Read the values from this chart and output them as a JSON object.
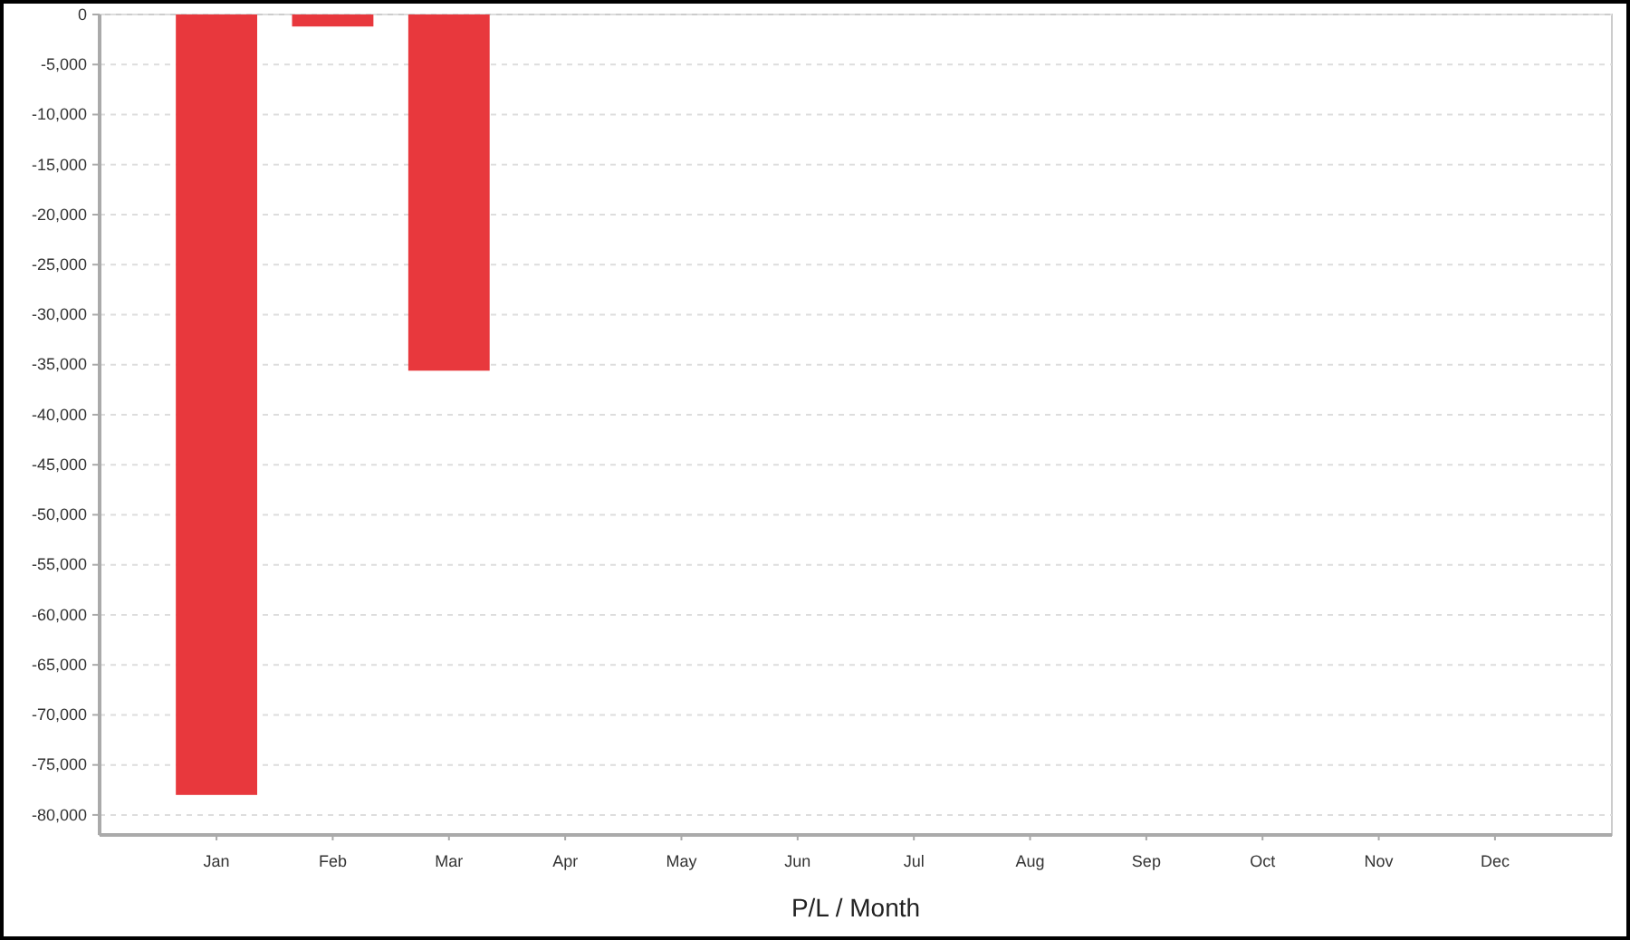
{
  "chart_data": {
    "type": "bar",
    "xlabel": "P/L / Month",
    "categories": [
      "Jan",
      "Feb",
      "Mar",
      "Apr",
      "May",
      "Jun",
      "Jul",
      "Aug",
      "Sep",
      "Oct",
      "Nov",
      "Dec"
    ],
    "values": [
      -78000,
      -1200,
      -35600,
      null,
      null,
      null,
      null,
      null,
      null,
      null,
      null,
      null
    ],
    "color": "#e8383d",
    "ylim": [
      -82000,
      0
    ],
    "yticks": [
      {
        "value": 0,
        "label": "0"
      },
      {
        "value": -5000,
        "label": "-5,000"
      },
      {
        "value": -10000,
        "label": "-10,000"
      },
      {
        "value": -15000,
        "label": "-15,000"
      },
      {
        "value": -20000,
        "label": "-20,000"
      },
      {
        "value": -25000,
        "label": "-25,000"
      },
      {
        "value": -30000,
        "label": "-30,000"
      },
      {
        "value": -35000,
        "label": "-35,000"
      },
      {
        "value": -40000,
        "label": "-40,000"
      },
      {
        "value": -45000,
        "label": "-45,000"
      },
      {
        "value": -50000,
        "label": "-50,000"
      },
      {
        "value": -55000,
        "label": "-55,000"
      },
      {
        "value": -60000,
        "label": "-60,000"
      },
      {
        "value": -65000,
        "label": "-65,000"
      },
      {
        "value": -70000,
        "label": "-70,000"
      },
      {
        "value": -75000,
        "label": "-75,000"
      },
      {
        "value": -80000,
        "label": "-80,000"
      }
    ],
    "grid": "y"
  }
}
